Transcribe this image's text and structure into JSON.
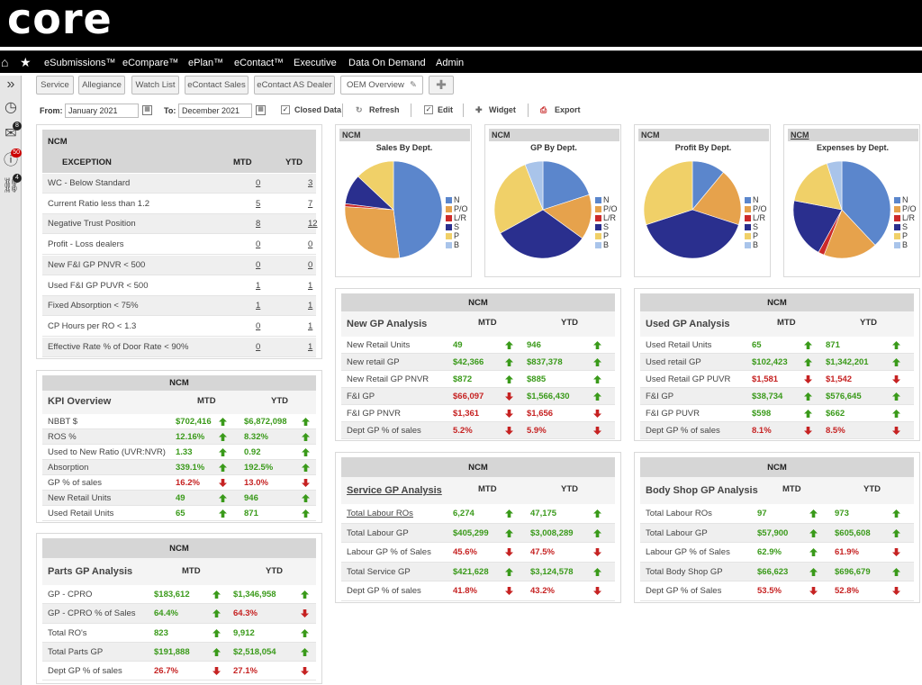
{
  "app": {
    "logo": "core"
  },
  "nav": {
    "items": [
      "eSubmissions™",
      "eCompare™",
      "ePlan™",
      "eContact™",
      "Executive",
      "Data On Demand",
      "Admin"
    ]
  },
  "sidebar": {
    "badges": {
      "mail": "8",
      "alerts": "50",
      "links": "4"
    }
  },
  "tabs": [
    "Service",
    "Allegiance",
    "Watch List",
    "eContact Sales",
    "eContact AS Dealer",
    "OEM Overview"
  ],
  "filter": {
    "from_label": "From:",
    "from_value": "January 2021",
    "to_label": "To:",
    "to_value": "December 2021",
    "closed_data_label": "Closed Data",
    "refresh_label": "Refresh",
    "edit_label": "Edit",
    "widget_label": "Widget",
    "export_label": "Export"
  },
  "exception": {
    "header": "NCM",
    "title": "EXCEPTION",
    "mtd": "MTD",
    "ytd": "YTD",
    "rows": [
      {
        "label": "WC - Below Standard",
        "mtd": "0",
        "ytd": "3"
      },
      {
        "label": "Current Ratio less than 1.2",
        "mtd": "5",
        "ytd": "7"
      },
      {
        "label": "Negative Trust Position",
        "mtd": "8",
        "ytd": "12"
      },
      {
        "label": "Profit - Loss dealers",
        "mtd": "0",
        "ytd": "0"
      },
      {
        "label": "New F&I GP PNVR < 500",
        "mtd": "0",
        "ytd": "0"
      },
      {
        "label": "Used F&I GP PUVR < 500",
        "mtd": "1",
        "ytd": "1"
      },
      {
        "label": "Fixed Absorption < 75%",
        "mtd": "1",
        "ytd": "1"
      },
      {
        "label": "CP Hours per RO < 1.3",
        "mtd": "0",
        "ytd": "1"
      },
      {
        "label": "Effective Rate % of Door Rate < 90%",
        "mtd": "0",
        "ytd": "1"
      }
    ]
  },
  "kpi": {
    "header": "NCM",
    "title": "KPI Overview",
    "mtd": "MTD",
    "ytd": "YTD",
    "rows": [
      {
        "label": "NBBT $",
        "mtd": "$702,416",
        "mtd_s": "g",
        "ytd": "$6,872,098",
        "ytd_s": "g"
      },
      {
        "label": "ROS %",
        "mtd": "12.16%",
        "mtd_s": "g",
        "ytd": "8.32%",
        "ytd_s": "g"
      },
      {
        "label": "Used to New Ratio (UVR:NVR)",
        "mtd": "1.33",
        "mtd_s": "g",
        "ytd": "0.92",
        "ytd_s": "g"
      },
      {
        "label": "Absorption",
        "mtd": "339.1%",
        "mtd_s": "g",
        "ytd": "192.5%",
        "ytd_s": "g"
      },
      {
        "label": "GP % of sales",
        "mtd": "16.2%",
        "mtd_s": "r",
        "ytd": "13.0%",
        "ytd_s": "r"
      },
      {
        "label": "New Retail Units",
        "mtd": "49",
        "mtd_s": "g",
        "ytd": "946",
        "ytd_s": "g"
      },
      {
        "label": "Used Retail Units",
        "mtd": "65",
        "mtd_s": "g",
        "ytd": "871",
        "ytd_s": "g"
      }
    ]
  },
  "parts": {
    "header": "NCM",
    "title": "Parts GP Analysis",
    "mtd": "MTD",
    "ytd": "YTD",
    "rows": [
      {
        "label": "GP - CPRO",
        "mtd": "$183,612",
        "mtd_s": "g",
        "ytd": "$1,346,958",
        "ytd_s": "g"
      },
      {
        "label": "GP - CPRO % of Sales",
        "mtd": "64.4%",
        "mtd_s": "g",
        "ytd": "64.3%",
        "ytd_s": "r"
      },
      {
        "label": "Total RO's",
        "mtd": "823",
        "mtd_s": "g",
        "ytd": "9,912",
        "ytd_s": "g"
      },
      {
        "label": "Total Parts GP",
        "mtd": "$191,888",
        "mtd_s": "g",
        "ytd": "$2,518,054",
        "ytd_s": "g"
      },
      {
        "label": "Dept GP % of sales",
        "mtd": "26.7%",
        "mtd_s": "r",
        "ytd": "27.1%",
        "ytd_s": "r"
      }
    ]
  },
  "newgp": {
    "header": "NCM",
    "title": "New GP Analysis",
    "mtd": "MTD",
    "ytd": "YTD",
    "rows": [
      {
        "label": "New Retail Units",
        "mtd": "49",
        "mtd_s": "g",
        "ytd": "946",
        "ytd_s": "g"
      },
      {
        "label": "New retail GP",
        "mtd": "$42,366",
        "mtd_s": "g",
        "ytd": "$837,378",
        "ytd_s": "g"
      },
      {
        "label": "New Retail GP PNVR",
        "mtd": "$872",
        "mtd_s": "g",
        "ytd": "$885",
        "ytd_s": "g"
      },
      {
        "label": "F&I GP",
        "mtd": "$66,097",
        "mtd_s": "r",
        "ytd": "$1,566,430",
        "ytd_s": "g"
      },
      {
        "label": "F&I GP PNVR",
        "mtd": "$1,361",
        "mtd_s": "r",
        "ytd": "$1,656",
        "ytd_s": "r"
      },
      {
        "label": "Dept GP % of sales",
        "mtd": "5.2%",
        "mtd_s": "r",
        "ytd": "5.9%",
        "ytd_s": "r"
      }
    ]
  },
  "usedgp": {
    "header": "NCM",
    "title": "Used GP Analysis",
    "mtd": "MTD",
    "ytd": "YTD",
    "rows": [
      {
        "label": "Used Retail Units",
        "mtd": "65",
        "mtd_s": "g",
        "ytd": "871",
        "ytd_s": "g"
      },
      {
        "label": "Used retail GP",
        "mtd": "$102,423",
        "mtd_s": "g",
        "ytd": "$1,342,201",
        "ytd_s": "g"
      },
      {
        "label": "Used Retail GP PUVR",
        "mtd": "$1,581",
        "mtd_s": "r",
        "ytd": "$1,542",
        "ytd_s": "r"
      },
      {
        "label": "F&I GP",
        "mtd": "$38,734",
        "mtd_s": "g",
        "ytd": "$576,645",
        "ytd_s": "g"
      },
      {
        "label": "F&I GP PUVR",
        "mtd": "$598",
        "mtd_s": "g",
        "ytd": "$662",
        "ytd_s": "g"
      },
      {
        "label": "Dept GP % of sales",
        "mtd": "8.1%",
        "mtd_s": "r",
        "ytd": "8.5%",
        "ytd_s": "r"
      }
    ]
  },
  "service": {
    "header": "NCM",
    "title": "Service GP Analysis",
    "mtd": "MTD",
    "ytd": "YTD",
    "rows": [
      {
        "label": "Total Labour ROs",
        "mtd": "6,274",
        "mtd_s": "g",
        "ytd": "47,175",
        "ytd_s": "g"
      },
      {
        "label": "Total Labour GP",
        "mtd": "$405,299",
        "mtd_s": "g",
        "ytd": "$3,008,289",
        "ytd_s": "g"
      },
      {
        "label": "Labour GP % of Sales",
        "mtd": "45.6%",
        "mtd_s": "r",
        "ytd": "47.5%",
        "ytd_s": "r"
      },
      {
        "label": "Total Service GP",
        "mtd": "$421,628",
        "mtd_s": "g",
        "ytd": "$3,124,578",
        "ytd_s": "g"
      },
      {
        "label": "Dept GP % of sales",
        "mtd": "41.8%",
        "mtd_s": "r",
        "ytd": "43.2%",
        "ytd_s": "r"
      }
    ]
  },
  "body": {
    "header": "NCM",
    "title": "Body Shop GP Analysis",
    "mtd": "MTD",
    "ytd": "YTD",
    "rows": [
      {
        "label": "Total Labour ROs",
        "mtd": "97",
        "mtd_s": "g",
        "ytd": "973",
        "ytd_s": "g"
      },
      {
        "label": "Total Labour GP",
        "mtd": "$57,900",
        "mtd_s": "g",
        "ytd": "$605,608",
        "ytd_s": "g"
      },
      {
        "label": "Labour GP % of Sales",
        "mtd": "62.9%",
        "mtd_s": "g",
        "ytd": "61.9%",
        "ytd_s": "r"
      },
      {
        "label": "Total Body Shop GP",
        "mtd": "$66,623",
        "mtd_s": "g",
        "ytd": "$696,679",
        "ytd_s": "g"
      },
      {
        "label": "Dept GP % of Sales",
        "mtd": "53.5%",
        "mtd_s": "r",
        "ytd": "52.8%",
        "ytd_s": "r"
      }
    ]
  },
  "colors": {
    "N": "#5b86cc",
    "P/O": "#e6a24c",
    "L/R": "#cc2a2a",
    "S": "#2a2f8e",
    "P": "#f0d068",
    "B": "#a9c4ea",
    "up": "#3a9a1a",
    "down": "#c62222"
  },
  "chart_data": [
    {
      "type": "pie",
      "header": "NCM",
      "title": "Sales By Dept.",
      "labels": [
        "N",
        "P/O",
        "L/R",
        "S",
        "P",
        "B"
      ],
      "values": [
        48,
        28,
        1,
        10,
        13,
        0
      ]
    },
    {
      "type": "pie",
      "header": "NCM",
      "title": "GP By Dept.",
      "labels": [
        "N",
        "P/O",
        "L/R",
        "S",
        "P",
        "B"
      ],
      "values": [
        20,
        15,
        0,
        32,
        27,
        6
      ]
    },
    {
      "type": "pie",
      "header": "NCM",
      "title": "Profit By Dept.",
      "labels": [
        "N",
        "P/O",
        "L/R",
        "S",
        "P",
        "B"
      ],
      "values": [
        11,
        19,
        0,
        40,
        30,
        0
      ]
    },
    {
      "type": "pie",
      "header": "NCM",
      "title": "Expenses by Dept.",
      "labels": [
        "N",
        "P/O",
        "L/R",
        "S",
        "P",
        "B"
      ],
      "values": [
        38,
        18,
        2,
        20,
        17,
        5
      ]
    }
  ]
}
